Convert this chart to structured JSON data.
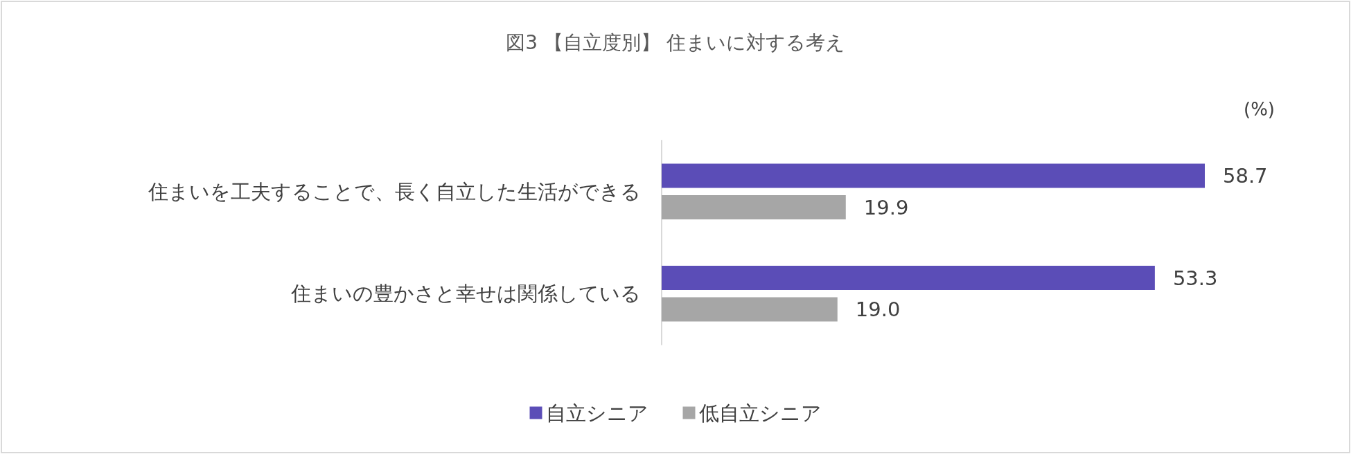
{
  "chart_data": {
    "type": "bar",
    "orientation": "horizontal",
    "title": "図3 【自立度別】 住まいに対する考え",
    "annotations": [
      "(%)"
    ],
    "categories": [
      "住まいを工夫することで、長く自立した生活ができる",
      "住まいの豊かさと幸せは関係している"
    ],
    "series": [
      {
        "name": "自立シニア",
        "color": "#5b4db7",
        "values": [
          58.7,
          53.3
        ],
        "value_labels": [
          "58.7",
          "53.3"
        ]
      },
      {
        "name": "低自立シニア",
        "color": "#a6a6a6",
        "values": [
          19.9,
          19.0
        ],
        "value_labels": [
          "19.9",
          "19.0"
        ]
      }
    ],
    "legend": "bottom",
    "grid": false
  }
}
